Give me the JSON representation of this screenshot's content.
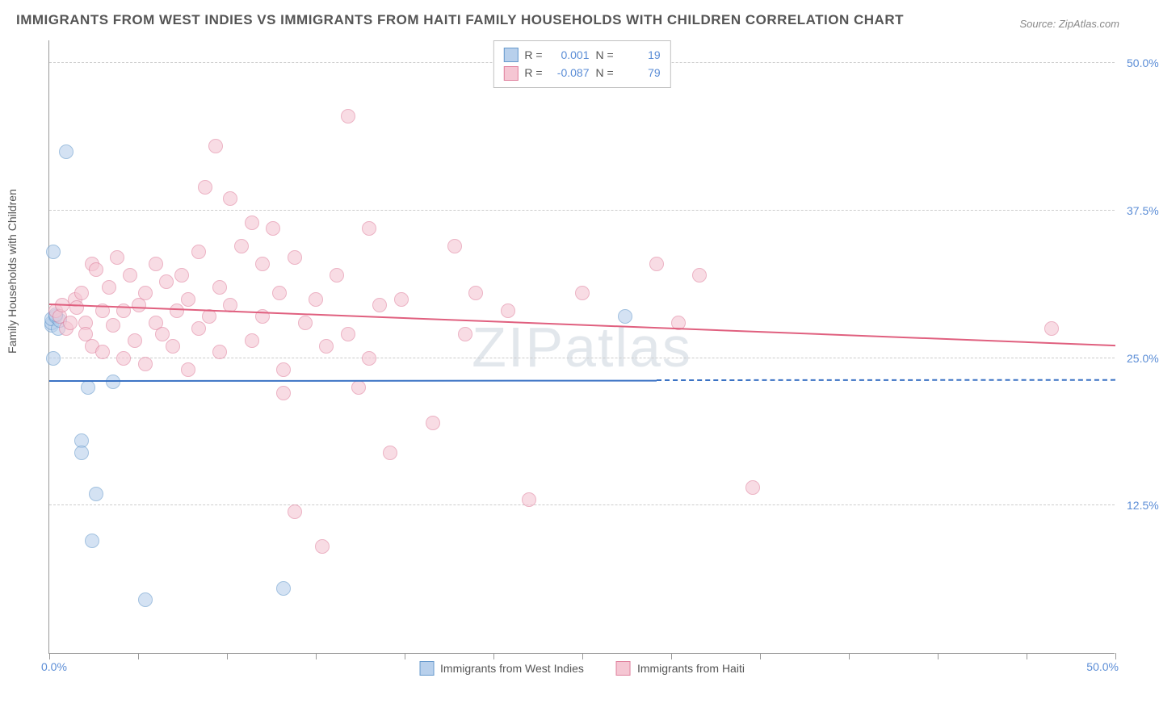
{
  "title": "IMMIGRANTS FROM WEST INDIES VS IMMIGRANTS FROM HAITI FAMILY HOUSEHOLDS WITH CHILDREN CORRELATION CHART",
  "source": "Source: ZipAtlas.com",
  "watermark": "ZIPatlas",
  "y_axis_label": "Family Households with Children",
  "chart": {
    "type": "scatter",
    "xlim": [
      0,
      50
    ],
    "ylim": [
      0,
      52
    ],
    "x_origin_label": "0.0%",
    "x_max_label": "50.0%",
    "y_ticks": [
      {
        "value": 12.5,
        "label": "12.5%"
      },
      {
        "value": 25.0,
        "label": "25.0%"
      },
      {
        "value": 37.5,
        "label": "37.5%"
      },
      {
        "value": 50.0,
        "label": "50.0%"
      }
    ],
    "x_tick_positions": [
      0,
      4.17,
      8.33,
      12.5,
      16.67,
      20.83,
      25,
      29.17,
      33.33,
      37.5,
      41.67,
      45.83,
      50
    ],
    "grid_color": "#cccccc",
    "background_color": "#ffffff",
    "point_radius": 9,
    "series": [
      {
        "name": "Immigrants from West Indies",
        "fill_color": "#b8d0ec",
        "stroke_color": "#6699cc",
        "fill_opacity": 0.6,
        "R": "0.001",
        "N": "19",
        "trend": {
          "y_start": 23.0,
          "y_end": 23.05,
          "x_solid_end": 28.5,
          "color": "#3a72c4"
        },
        "points": [
          [
            0.1,
            27.8
          ],
          [
            0.1,
            28.0
          ],
          [
            0.1,
            28.3
          ],
          [
            0.2,
            25.0
          ],
          [
            0.2,
            34.0
          ],
          [
            0.3,
            28.5
          ],
          [
            0.4,
            27.5
          ],
          [
            0.5,
            28.2
          ],
          [
            0.8,
            42.5
          ],
          [
            1.5,
            18.0
          ],
          [
            1.5,
            17.0
          ],
          [
            1.8,
            22.5
          ],
          [
            2.0,
            9.5
          ],
          [
            2.2,
            13.5
          ],
          [
            3.0,
            23.0
          ],
          [
            4.5,
            4.5
          ],
          [
            11.0,
            5.5
          ],
          [
            27.0,
            28.5
          ],
          [
            0.3,
            28.7
          ]
        ]
      },
      {
        "name": "Immigrants from Haiti",
        "fill_color": "#f5c6d3",
        "stroke_color": "#e0819e",
        "fill_opacity": 0.6,
        "R": "-0.087",
        "N": "79",
        "trend": {
          "y_start": 29.5,
          "y_end": 26.0,
          "x_solid_end": 50,
          "color": "#e0607f"
        },
        "points": [
          [
            0.3,
            29.0
          ],
          [
            0.5,
            28.5
          ],
          [
            0.6,
            29.5
          ],
          [
            0.8,
            27.5
          ],
          [
            1.0,
            28.0
          ],
          [
            1.2,
            30.0
          ],
          [
            1.3,
            29.3
          ],
          [
            1.5,
            30.5
          ],
          [
            1.7,
            28.0
          ],
          [
            1.7,
            27.0
          ],
          [
            2.0,
            33.0
          ],
          [
            2.0,
            26.0
          ],
          [
            2.2,
            32.5
          ],
          [
            2.5,
            29.0
          ],
          [
            2.5,
            25.5
          ],
          [
            2.8,
            31.0
          ],
          [
            3.0,
            27.8
          ],
          [
            3.2,
            33.5
          ],
          [
            3.5,
            29.0
          ],
          [
            3.5,
            25.0
          ],
          [
            3.8,
            32.0
          ],
          [
            4.0,
            26.5
          ],
          [
            4.2,
            29.5
          ],
          [
            4.5,
            30.5
          ],
          [
            4.5,
            24.5
          ],
          [
            5.0,
            33.0
          ],
          [
            5.0,
            28.0
          ],
          [
            5.3,
            27.0
          ],
          [
            5.5,
            31.5
          ],
          [
            5.8,
            26.0
          ],
          [
            6.0,
            29.0
          ],
          [
            6.2,
            32.0
          ],
          [
            6.5,
            30.0
          ],
          [
            6.5,
            24.0
          ],
          [
            7.0,
            34.0
          ],
          [
            7.0,
            27.5
          ],
          [
            7.3,
            39.5
          ],
          [
            7.5,
            28.5
          ],
          [
            7.8,
            43.0
          ],
          [
            8.0,
            31.0
          ],
          [
            8.0,
            25.5
          ],
          [
            8.5,
            38.5
          ],
          [
            8.5,
            29.5
          ],
          [
            9.0,
            34.5
          ],
          [
            9.5,
            36.5
          ],
          [
            9.5,
            26.5
          ],
          [
            10.0,
            33.0
          ],
          [
            10.0,
            28.5
          ],
          [
            10.5,
            36.0
          ],
          [
            10.8,
            30.5
          ],
          [
            11.0,
            24.0
          ],
          [
            11.0,
            22.0
          ],
          [
            11.5,
            33.5
          ],
          [
            11.5,
            12.0
          ],
          [
            12.0,
            28.0
          ],
          [
            12.5,
            30.0
          ],
          [
            12.8,
            9.0
          ],
          [
            13.0,
            26.0
          ],
          [
            13.5,
            32.0
          ],
          [
            14.0,
            45.5
          ],
          [
            14.0,
            27.0
          ],
          [
            14.5,
            22.5
          ],
          [
            15.0,
            36.0
          ],
          [
            15.0,
            25.0
          ],
          [
            15.5,
            29.5
          ],
          [
            16.0,
            17.0
          ],
          [
            16.5,
            30.0
          ],
          [
            18.0,
            19.5
          ],
          [
            19.0,
            34.5
          ],
          [
            19.5,
            27.0
          ],
          [
            20.0,
            30.5
          ],
          [
            21.5,
            29.0
          ],
          [
            22.5,
            13.0
          ],
          [
            25.0,
            30.5
          ],
          [
            28.5,
            33.0
          ],
          [
            29.5,
            28.0
          ],
          [
            30.5,
            32.0
          ],
          [
            33.0,
            14.0
          ],
          [
            47.0,
            27.5
          ]
        ]
      }
    ]
  },
  "legend": {
    "R_label": "R =",
    "N_label": "N ="
  }
}
